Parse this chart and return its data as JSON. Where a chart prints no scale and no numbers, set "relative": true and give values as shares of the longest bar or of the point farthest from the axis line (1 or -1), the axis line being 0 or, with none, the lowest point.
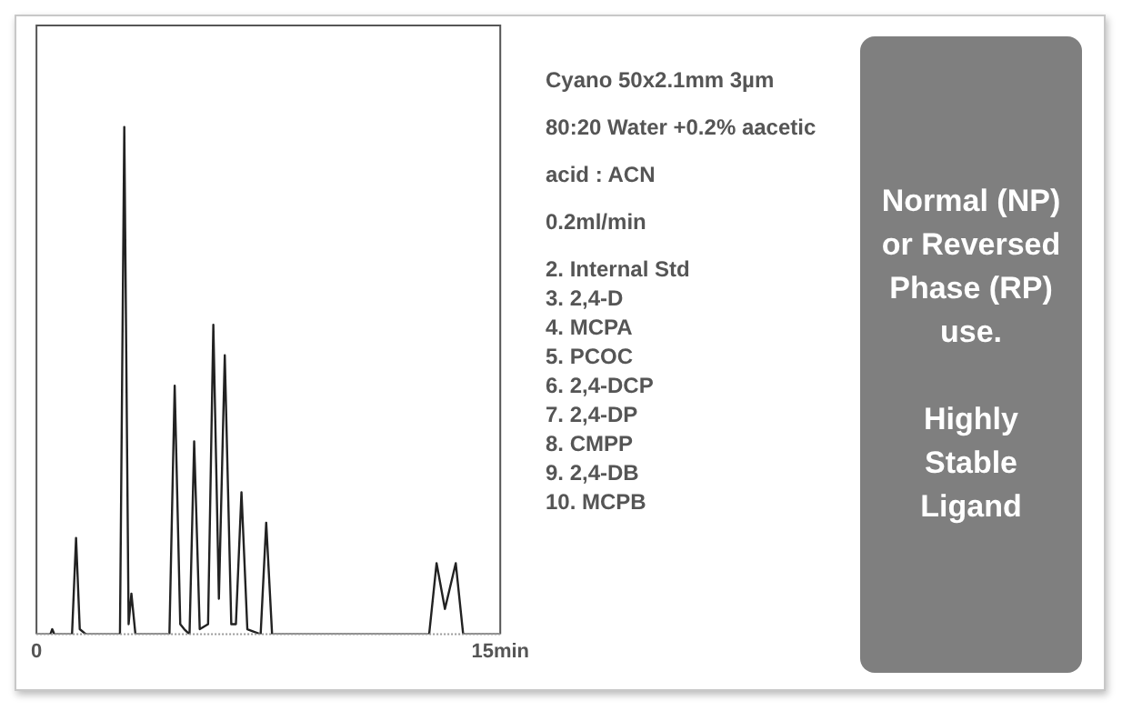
{
  "chart_data": {
    "type": "line",
    "title": "Normal (NP) or Reversed Phase (RP) use.",
    "subtitle": "Highly Stable Ligand",
    "annotations": [
      "Cyano 50x2.1mm 3µm",
      "80:20 Water +0.2% aacetic",
      "acid :  ACN",
      "0.2ml/min",
      "2. Internal Std\n3. 2,4-D\n4. MCPA\n5. PCOC\n6. 2,4-DCP\n7. 2,4-DP\n8. CMPP\n9. 2,4-DB\n10. MCPB"
    ],
    "relative": true,
    "xlim": [
      0,
      15
    ],
    "xticks": [
      0,
      {
        "value": 15,
        "label": "15min"
      }
    ],
    "legend": false,
    "marker": "none",
    "line_style": "solid",
    "series": [
      {
        "color": "#222222",
        "x": [
          0,
          0.45,
          0.51,
          0.58,
          1.15,
          1.28,
          1.4,
          1.6,
          2.7,
          2.84,
          2.98,
          3.07,
          3.2,
          4.3,
          4.47,
          4.65,
          4.78,
          4.95,
          5.1,
          5.28,
          5.55,
          5.72,
          5.9,
          6.09,
          6.3,
          6.45,
          6.63,
          6.82,
          7.25,
          7.43,
          7.62,
          12.7,
          12.94,
          13.21,
          13.56,
          13.8,
          15
        ],
        "values": [
          0,
          0,
          0.01,
          0,
          0,
          0.19,
          0.01,
          0,
          0,
          1,
          0.02,
          0.08,
          0,
          0,
          0.49,
          0.02,
          0.01,
          0,
          0.38,
          0.01,
          0.02,
          0.61,
          0.07,
          0.55,
          0.02,
          0.02,
          0.28,
          0.01,
          0,
          0.22,
          0,
          0,
          0.14,
          0.05,
          0.14,
          0,
          0
        ]
      }
    ]
  }
}
